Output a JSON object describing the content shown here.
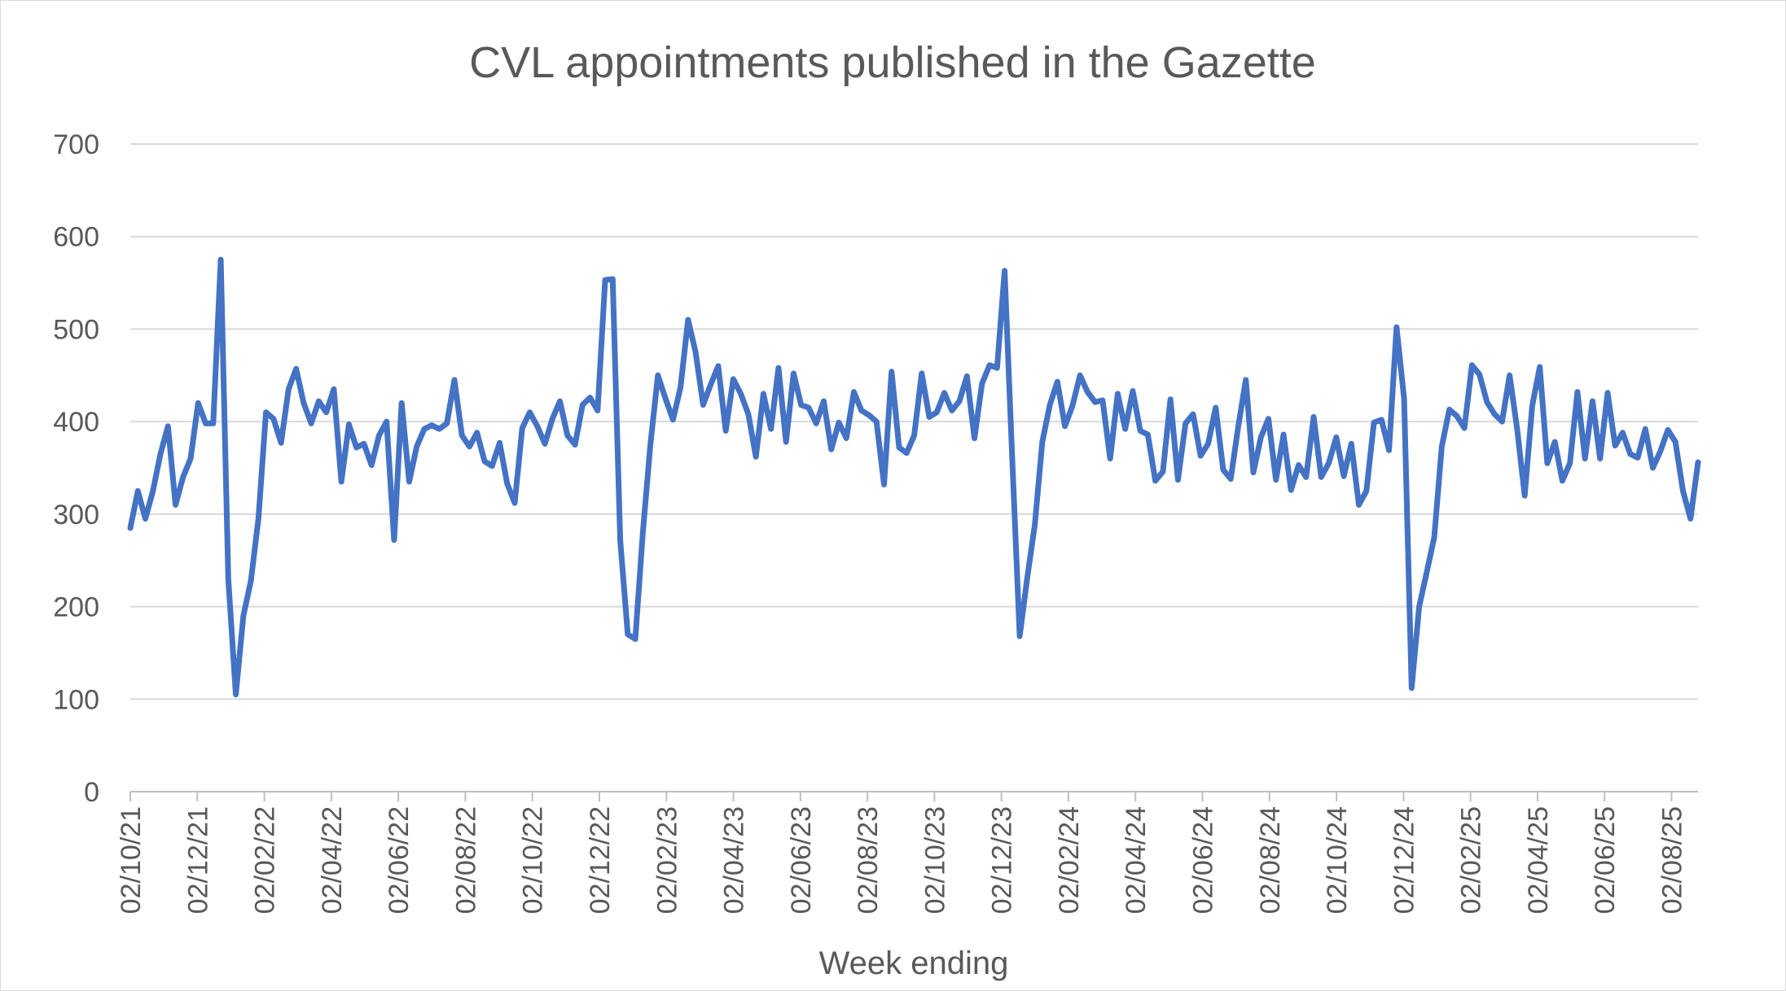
{
  "chart_data": {
    "type": "line",
    "title": "CVL appointments published in the Gazette",
    "xlabel": "Week ending",
    "ylabel": "",
    "ylim": [
      0,
      700
    ],
    "yticks": [
      0,
      100,
      200,
      300,
      400,
      500,
      600,
      700
    ],
    "grid": true,
    "line_color": "#4472C4",
    "xtick_labels": [
      "02/10/21",
      "02/12/21",
      "02/02/22",
      "02/04/22",
      "02/06/22",
      "02/08/22",
      "02/10/22",
      "02/12/22",
      "02/02/23",
      "02/04/23",
      "02/06/23",
      "02/08/23",
      "02/10/23",
      "02/12/23",
      "02/02/24",
      "02/04/24",
      "02/06/24",
      "02/08/24",
      "02/10/24",
      "02/12/24",
      "02/02/25",
      "02/04/25",
      "02/06/25",
      "02/08/25"
    ],
    "series": [
      {
        "values": [
          285,
          325,
          295,
          325,
          365,
          395,
          310,
          340,
          360,
          420,
          398,
          398,
          575,
          230,
          105,
          190,
          228,
          295,
          410,
          403,
          377,
          435,
          457,
          420,
          398,
          422,
          410,
          435,
          335,
          397,
          372,
          376,
          353,
          385,
          400,
          272,
          420,
          335,
          373,
          392,
          396,
          392,
          398,
          445,
          385,
          373,
          388,
          357,
          352,
          377,
          333,
          312,
          393,
          410,
          395,
          376,
          403,
          422,
          385,
          375,
          418,
          426,
          412,
          553,
          554,
          272,
          170,
          165,
          280,
          375,
          450,
          425,
          402,
          437,
          510,
          475,
          418,
          440,
          460,
          390,
          446,
          430,
          408,
          362,
          430,
          392,
          458,
          378,
          452,
          418,
          415,
          398,
          422,
          370,
          399,
          382,
          432,
          412,
          407,
          400,
          332,
          454,
          372,
          366,
          385,
          452,
          405,
          410,
          431,
          412,
          422,
          449,
          382,
          441,
          461,
          458,
          563,
          362,
          168,
          231,
          288,
          378,
          418,
          443,
          395,
          417,
          450,
          432,
          421,
          423,
          360,
          430,
          392,
          433,
          390,
          386,
          336,
          346,
          424,
          337,
          398,
          408,
          363,
          376,
          415,
          348,
          338,
          395,
          445,
          345,
          383,
          403,
          337,
          386,
          326,
          353,
          340,
          405,
          340,
          355,
          383,
          341,
          376,
          310,
          325,
          399,
          402,
          369,
          502,
          425,
          112,
          200,
          237,
          275,
          373,
          413,
          406,
          393,
          461,
          451,
          421,
          408,
          400,
          450,
          392,
          320,
          417,
          459,
          355,
          378,
          336,
          355,
          432,
          360,
          422,
          360,
          431,
          374,
          388,
          365,
          361,
          392,
          350,
          368,
          391,
          378,
          325,
          295,
          356
        ]
      }
    ]
  }
}
